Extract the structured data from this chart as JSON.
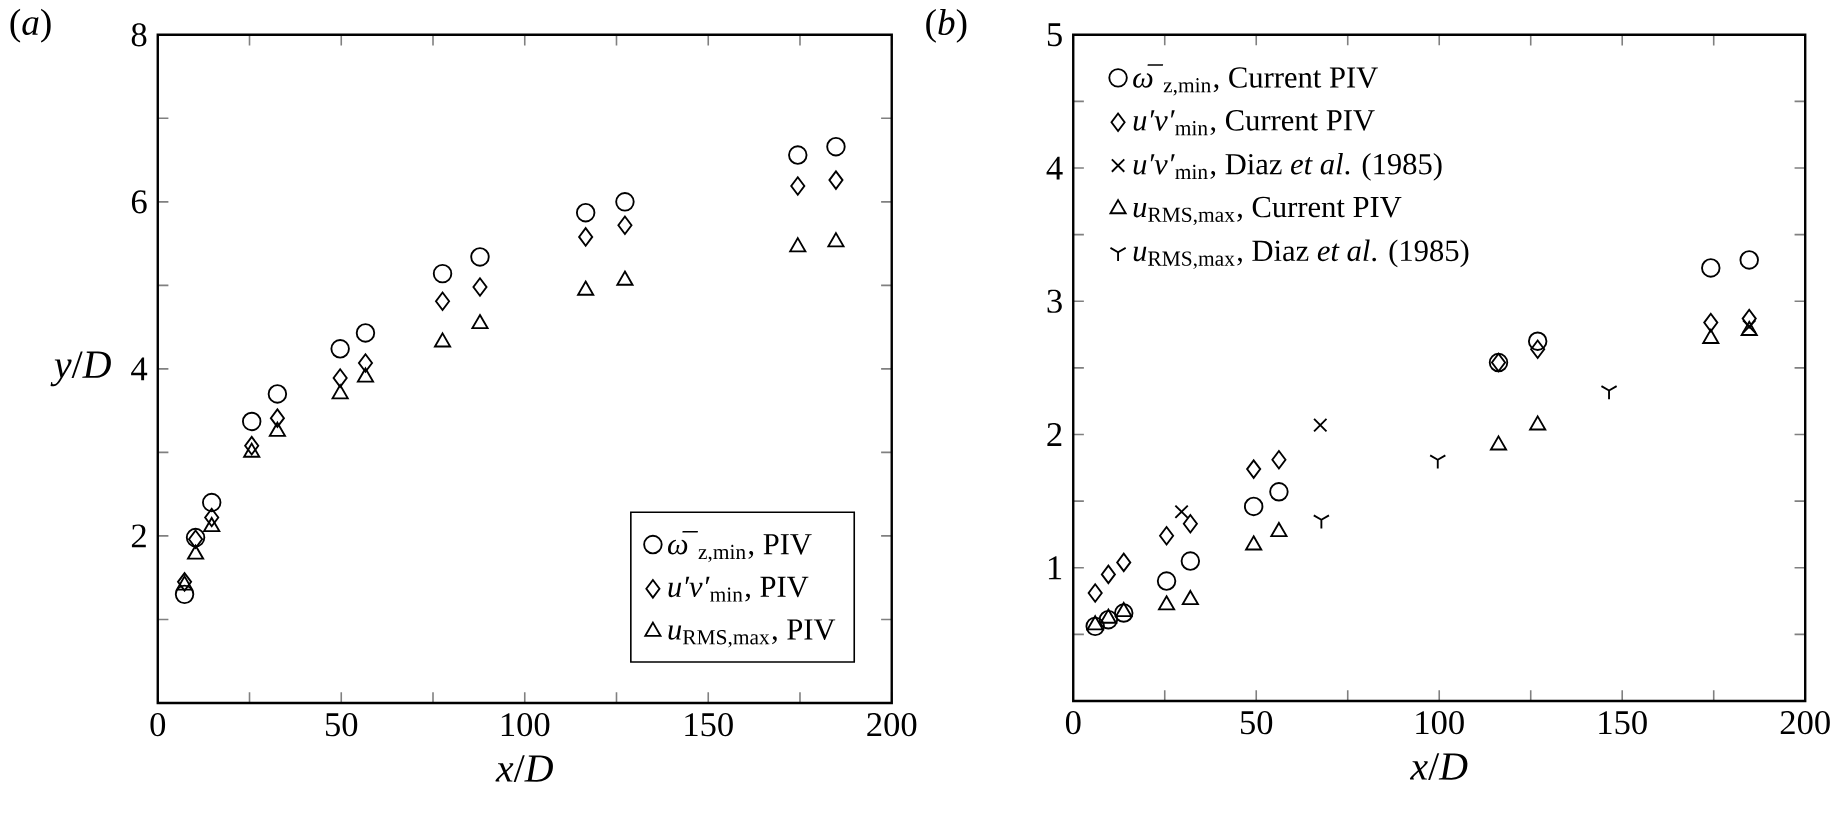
{
  "chart_data": [
    {
      "type": "scatter",
      "title": "(*a*)",
      "xlabel": "*x*/*D*",
      "ylabel": "*y*/*D*",
      "legend": "bottom right",
      "xlim": [
        0,
        200
      ],
      "ylim": [
        0,
        8
      ],
      "xticks": [
        0,
        {
          "value": 25,
          "label": null
        },
        50,
        {
          "value": 75,
          "label": null
        },
        100,
        {
          "value": 125,
          "label": null
        },
        150,
        {
          "value": 175,
          "label": null
        },
        200
      ],
      "yticks": [
        {
          "value": 1,
          "label": null
        },
        2,
        {
          "value": 3,
          "label": null
        },
        4,
        {
          "value": 5,
          "label": null
        },
        6,
        {
          "value": 7,
          "label": null
        },
        8
      ],
      "x": [
        7.3,
        10.3,
        14.7,
        25.6,
        32.6,
        49.7,
        56.6,
        77.6,
        87.8,
        116.6,
        127.3,
        174.4,
        184.8
      ],
      "series": [
        {
          "name": "*ω̅*$_{z,min}$, PIV",
          "color": "#000000",
          "marker": "circle",
          "values": [
            1.3,
            1.98,
            2.4,
            3.37,
            3.7,
            4.24,
            4.43,
            5.14,
            5.34,
            5.87,
            6.0,
            6.56,
            6.66
          ]
        },
        {
          "name": "*u′v′*$_{min}$, PIV",
          "color": "#000000",
          "marker": "diamond",
          "values": [
            1.45,
            1.96,
            2.22,
            3.08,
            3.41,
            3.89,
            4.07,
            4.81,
            4.98,
            5.58,
            5.72,
            6.19,
            6.26
          ]
        },
        {
          "name": "*u*$_{RMS,max}$, PIV",
          "color": "#000000",
          "marker": "triangle",
          "values": [
            1.41,
            1.78,
            2.11,
            3.0,
            3.25,
            3.7,
            3.9,
            4.32,
            4.54,
            4.94,
            5.06,
            5.46,
            5.52
          ]
        }
      ]
    },
    {
      "type": "scatter",
      "title": "(*b*)",
      "xlabel": "*x*/*D*",
      "legend": "top left",
      "xlim": [
        0,
        200
      ],
      "ylim": [
        0,
        5
      ],
      "xticks": [
        0,
        {
          "value": 25,
          "label": null
        },
        50,
        {
          "value": 75,
          "label": null
        },
        100,
        {
          "value": 125,
          "label": null
        },
        150,
        {
          "value": 175,
          "label": null
        },
        200
      ],
      "yticks": [
        {
          "value": 0.5,
          "label": null
        },
        1,
        {
          "value": 1.5,
          "label": null
        },
        2,
        {
          "value": 2.5,
          "label": null
        },
        3,
        {
          "value": 3.5,
          "label": null
        },
        4,
        {
          "value": 4.5,
          "label": null
        },
        5
      ],
      "x": [
        6.0,
        9.6,
        13.8,
        25.5,
        32.0,
        49.3,
        56.2,
        116.2,
        126.9,
        174.2,
        184.7
      ],
      "series": [
        {
          "name": "*ω̅*$_{z,min}$, Current PIV",
          "color": "#000000",
          "marker": "circle",
          "values": [
            0.56,
            0.61,
            0.66,
            0.9,
            1.05,
            1.46,
            1.57,
            2.54,
            2.7,
            3.25,
            3.31
          ]
        },
        {
          "name": "*u′v′*$_{min}$, Current PIV",
          "color": "#000000",
          "marker": "diamond",
          "values": [
            0.81,
            0.95,
            1.04,
            1.24,
            1.33,
            1.74,
            1.81,
            2.54,
            2.64,
            2.84,
            2.87
          ]
        },
        {
          "name": "*u′v′*$_{min}$, Diaz *et al*. (1985)",
          "color": "#000000",
          "marker": "cross",
          "x": [
            29.6,
            67.5,
            184.7
          ],
          "values": [
            1.42,
            2.07,
            2.81
          ]
        },
        {
          "name": "*u*$_{RMS,max}$, Current PIV",
          "color": "#000000",
          "marker": "triangle",
          "values": [
            0.57,
            0.62,
            0.67,
            0.72,
            0.76,
            1.17,
            1.27,
            1.92,
            2.07,
            2.72,
            2.78
          ]
        },
        {
          "name": "*u*$_{RMS,max}$, Diaz *et al*. (1985)",
          "color": "#000000",
          "x": [
            67.8,
            99.6,
            146.4
          ],
          "values": [
            1.36,
            1.81,
            2.33
          ]
        }
      ]
    }
  ]
}
